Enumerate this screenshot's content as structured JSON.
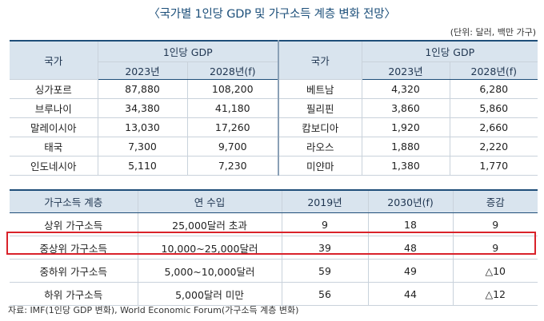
{
  "title": "〈국가별 1인당 GDP 및 가구소득 계층 변화 전망〉",
  "unit": "(단위: 달러, 백만 가구)",
  "gdp_table": {
    "country_header": "국가",
    "group_header": "1인당 GDP",
    "year_headers": [
      "2023년",
      "2028년(f)"
    ],
    "left_rows": [
      {
        "country": "싱가포르",
        "y2023": "87,880",
        "y2028": "108,200"
      },
      {
        "country": "브루나이",
        "y2023": "34,380",
        "y2028": "41,180"
      },
      {
        "country": "말레이시아",
        "y2023": "13,030",
        "y2028": "17,260"
      },
      {
        "country": "태국",
        "y2023": "7,300",
        "y2028": "9,700"
      },
      {
        "country": "인도네시아",
        "y2023": "5,110",
        "y2028": "7,230"
      }
    ],
    "right_rows": [
      {
        "country": "베트남",
        "y2023": "4,320",
        "y2028": "6,280"
      },
      {
        "country": "필리핀",
        "y2023": "3,860",
        "y2028": "5,860"
      },
      {
        "country": "캄보디아",
        "y2023": "1,920",
        "y2028": "2,660"
      },
      {
        "country": "라오스",
        "y2023": "1,880",
        "y2028": "2,220"
      },
      {
        "country": "미얀마",
        "y2023": "1,380",
        "y2028": "1,770"
      }
    ]
  },
  "income_table": {
    "headers": [
      "가구소득 계층",
      "연 수입",
      "2019년",
      "2030년(f)",
      "증감"
    ],
    "rows": [
      {
        "tier": "상위 가구소득",
        "income": "25,000달러 초과",
        "y2019": "9",
        "y2030": "18",
        "change": "9"
      },
      {
        "tier": "중상위 가구소득",
        "income": "10,000~25,000달러",
        "y2019": "39",
        "y2030": "48",
        "change": "9"
      },
      {
        "tier": "중하위 가구소득",
        "income": "5,000~10,000달러",
        "y2019": "59",
        "y2030": "49",
        "change": "△10"
      },
      {
        "tier": "하위 가구소득",
        "income": "5,000달러 미만",
        "y2019": "56",
        "y2030": "44",
        "change": "△12"
      }
    ]
  },
  "source": "자료: IMF(1인당 GDP 변화), World Economic Forum(가구소득 계층 변화)"
}
